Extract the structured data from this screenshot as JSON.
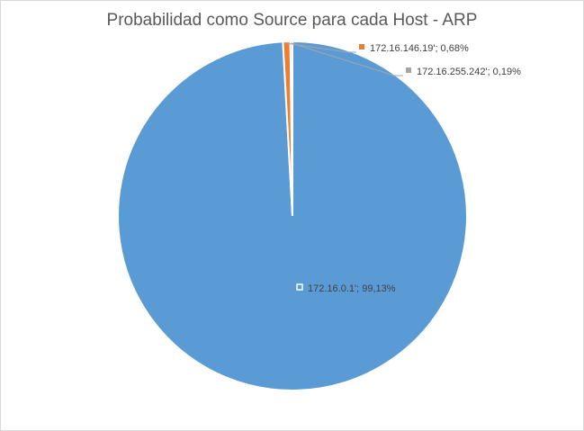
{
  "chart_data": {
    "type": "pie",
    "title": "Probabilidad como Source para cada Host - ARP",
    "slices": [
      {
        "name": "172.16.0.1'",
        "value": 99.13,
        "label": "172.16.0.1'; 99,13%",
        "color": "#5b9bd5"
      },
      {
        "name": "172.16.146.19'",
        "value": 0.68,
        "label": "172.16.146.19'; 0,68%",
        "color": "#ed7d31"
      },
      {
        "name": "172.16.255.242'",
        "value": 0.19,
        "label": "172.16.255.242'; 0,19%",
        "color": "#a5a5a5"
      }
    ],
    "legend": "none",
    "data_labels": "on"
  }
}
